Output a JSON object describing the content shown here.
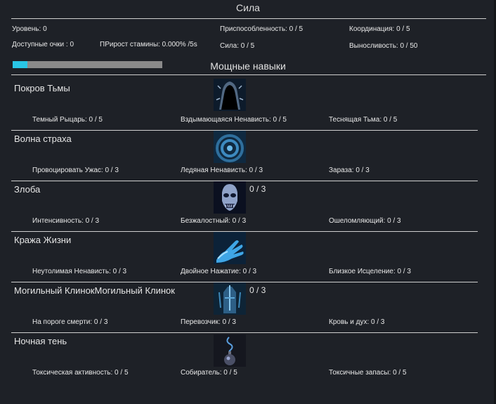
{
  "header": {
    "title": "Сила"
  },
  "stats": {
    "level": "Уровень: 0",
    "available_points": "Доступные очки : 0",
    "stamina_growth": "ПРирост стамины: 0.000% /5s",
    "adaptability": "Приспособленность: 0 / 5",
    "strength": "Сила: 0 / 5",
    "coordination": "Координация: 0 / 5",
    "endurance": "Выносливость: 0 / 50"
  },
  "progress": {
    "fraction": 0.1
  },
  "section": {
    "title": "Мощные навыки"
  },
  "skills": [
    {
      "name": "Покров Тьмы",
      "icon": "dark-shroud-icon",
      "level": "",
      "subs": [
        "Темный Рыцарь: 0 / 5",
        "Вздымающаяся Ненависть: 0 / 5",
        "Теснящая Тьма: 0 / 5"
      ]
    },
    {
      "name": "Волна страха",
      "icon": "fear-wave-icon",
      "level": "",
      "subs": [
        "Провоцировать Ужас: 0 / 3",
        "Ледяная Ненависть: 0 / 3",
        "Зараза: 0 / 3"
      ]
    },
    {
      "name": "Злоба",
      "icon": "malice-skull-icon",
      "level": "0 / 3",
      "subs": [
        "Интенсивность: 0 / 3",
        "Безжалостный: 0 / 3",
        "Ошеломляющий: 0 / 3"
      ]
    },
    {
      "name": "Кража Жизни",
      "icon": "life-steal-hand-icon",
      "level": "",
      "subs": [
        "Неутолимая Ненависть: 0 / 3",
        "Двойное Нажатие: 0 / 3",
        "Близкое Исцеление: 0 / 3"
      ]
    },
    {
      "name": "Могильный КлинокМогильный Клинок",
      "icon": "grave-blade-icon",
      "level": "0 / 3",
      "subs": [
        "На пороге смерти: 0 / 3",
        "Перевозчик: 0 / 3",
        "Кровь и дух: 0 / 3"
      ]
    },
    {
      "name": "Ночная тень",
      "icon": "night-shade-icon",
      "level": "",
      "subs": [
        "Токсическая активность: 0 / 5",
        "Собиратель: 0 / 5",
        "Токсичные запасы: 0 / 5"
      ]
    }
  ],
  "colors": {
    "background": "#1e2127",
    "progress_fill": "#29c6e6",
    "progress_track": "#8a8a8a"
  }
}
